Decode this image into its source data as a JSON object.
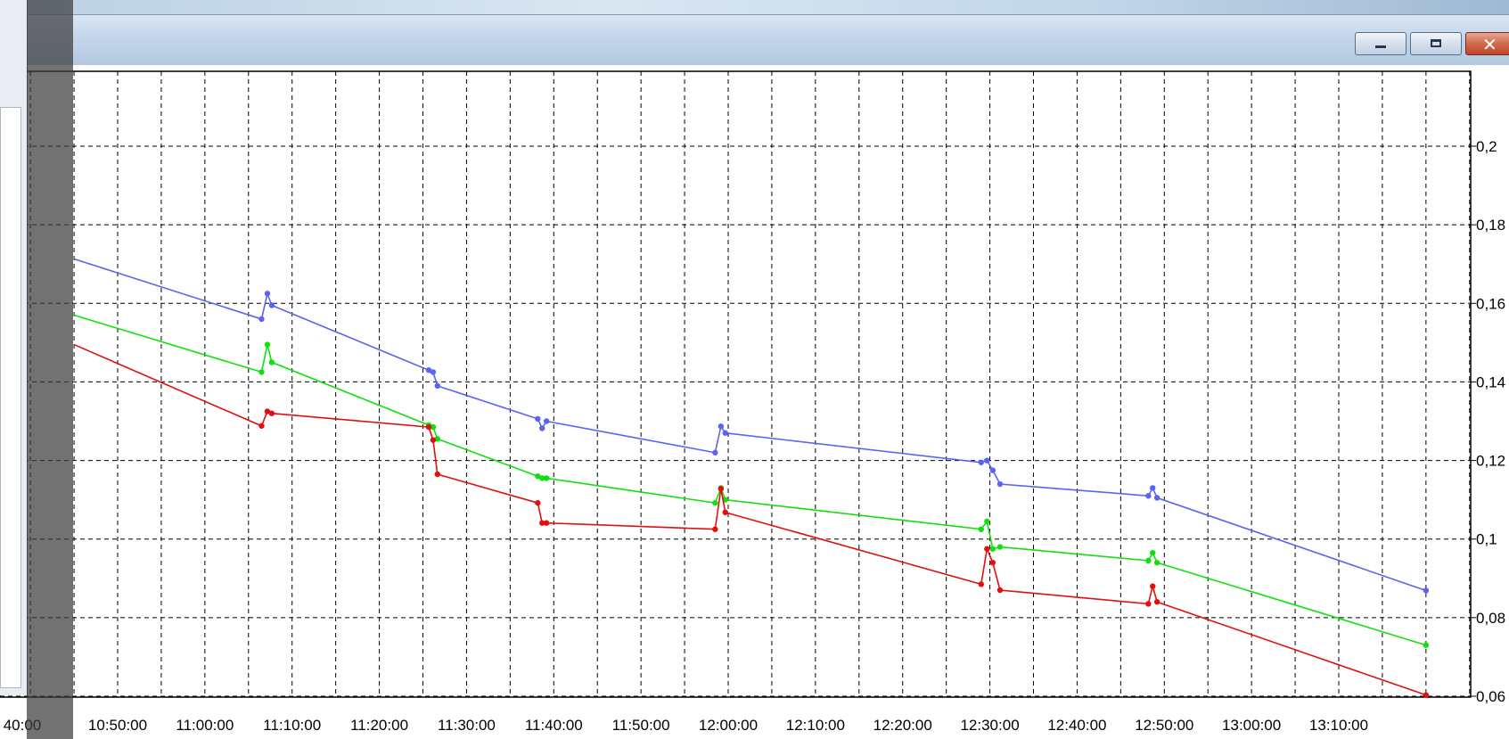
{
  "window": {
    "minimize_icon": "minimize-icon",
    "maximize_icon": "maximize-icon",
    "close_icon": "close-icon"
  },
  "colors": {
    "blue": "#5a64f0",
    "green": "#10e010",
    "red": "#e01010",
    "grid": "#000000"
  },
  "chart_data": {
    "type": "line",
    "title": "",
    "xlabel": "",
    "ylabel": "",
    "x_ticks": [
      "40:00",
      "10:50:00",
      "11:00:00",
      "11:10:00",
      "11:20:00",
      "11:30:00",
      "11:40:00",
      "11:50:00",
      "12:00:00",
      "12:10:00",
      "12:20:00",
      "12:30:00",
      "12:40:00",
      "12:50:00",
      "13:00:00",
      "13:10:00"
    ],
    "y_ticks": [
      "0,2",
      "0,18",
      "0,16",
      "0,14",
      "0,12",
      "0,1",
      "0,08",
      "0,06"
    ],
    "y_range": [
      0.06,
      0.22
    ],
    "grid": true,
    "legend": "none",
    "series": [
      {
        "color": "#5a64f0",
        "points": [
          [
            "10:45:00",
            0.1713
          ],
          [
            "11:06:30",
            0.156
          ],
          [
            "11:07:10",
            0.1625
          ],
          [
            "11:07:40",
            0.1595
          ],
          [
            "11:25:40",
            0.143
          ],
          [
            "11:26:10",
            0.1425
          ],
          [
            "11:26:40",
            0.139
          ],
          [
            "11:38:10",
            0.1306
          ],
          [
            "11:38:40",
            0.1282
          ],
          [
            "11:39:10",
            0.13
          ],
          [
            "11:58:30",
            0.122
          ],
          [
            "11:59:10",
            0.1287
          ],
          [
            "11:59:40",
            0.127
          ],
          [
            "12:29:00",
            0.1195
          ],
          [
            "12:29:40",
            0.12
          ],
          [
            "12:30:20",
            0.1175
          ],
          [
            "12:31:10",
            0.114
          ],
          [
            "12:48:10",
            0.111
          ],
          [
            "12:48:40",
            0.113
          ],
          [
            "12:49:10",
            0.1105
          ],
          [
            "13:20:00",
            0.0869
          ]
        ]
      },
      {
        "color": "#10e010",
        "points": [
          [
            "10:45:00",
            0.157
          ],
          [
            "11:06:30",
            0.1425
          ],
          [
            "11:07:10",
            0.1495
          ],
          [
            "11:07:40",
            0.145
          ],
          [
            "11:25:40",
            0.129
          ],
          [
            "11:26:10",
            0.1285
          ],
          [
            "11:26:40",
            0.1255
          ],
          [
            "11:38:10",
            0.116
          ],
          [
            "11:38:40",
            0.1155
          ],
          [
            "11:39:10",
            0.1155
          ],
          [
            "11:58:30",
            0.1092
          ],
          [
            "11:59:10",
            0.113
          ],
          [
            "11:59:40",
            0.11
          ],
          [
            "12:29:00",
            0.1025
          ],
          [
            "12:29:40",
            0.1045
          ],
          [
            "12:30:20",
            0.0975
          ],
          [
            "12:31:10",
            0.098
          ],
          [
            "12:48:10",
            0.0945
          ],
          [
            "12:48:40",
            0.0965
          ],
          [
            "12:49:10",
            0.094
          ],
          [
            "13:20:00",
            0.073
          ]
        ]
      },
      {
        "color": "#e01010",
        "points": [
          [
            "10:45:00",
            0.1495
          ],
          [
            "11:06:30",
            0.1288
          ],
          [
            "11:07:10",
            0.1325
          ],
          [
            "11:07:40",
            0.132
          ],
          [
            "11:25:40",
            0.1285
          ],
          [
            "11:26:10",
            0.1252
          ],
          [
            "11:26:40",
            0.1165
          ],
          [
            "11:38:10",
            0.1092
          ],
          [
            "11:38:40",
            0.1041
          ],
          [
            "11:39:10",
            0.1041
          ],
          [
            "11:58:30",
            0.1025
          ],
          [
            "11:59:10",
            0.1128
          ],
          [
            "11:59:40",
            0.1068
          ],
          [
            "12:29:00",
            0.0885
          ],
          [
            "12:29:40",
            0.0975
          ],
          [
            "12:30:20",
            0.094
          ],
          [
            "12:31:10",
            0.087
          ],
          [
            "12:48:10",
            0.0835
          ],
          [
            "12:48:40",
            0.088
          ],
          [
            "12:49:10",
            0.084
          ],
          [
            "13:20:00",
            0.0603
          ]
        ]
      }
    ]
  }
}
